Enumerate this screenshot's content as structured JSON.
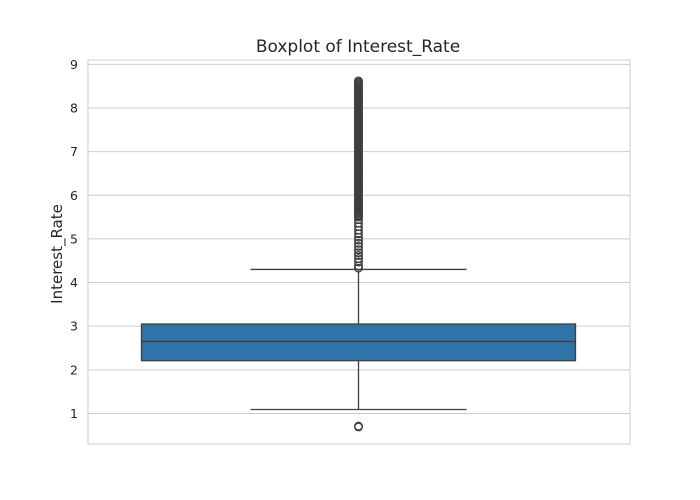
{
  "chart_data": {
    "type": "box",
    "title": "Boxplot of Interest_Rate",
    "xlabel": "",
    "ylabel": "Interest_Rate",
    "ylim": [
      0.3,
      9.1
    ],
    "yticks": [
      1,
      2,
      3,
      4,
      5,
      6,
      7,
      8,
      9
    ],
    "grid": true,
    "box_color": "#2e74a8",
    "boxes": [
      {
        "whisker_low": 1.09,
        "q1": 2.21,
        "median": 2.65,
        "q3": 3.05,
        "whisker_high": 4.3,
        "fliers_low": [
          0.69,
          0.71
        ],
        "fliers_high_sample": [
          4.33,
          4.38,
          4.47,
          4.55,
          4.62,
          4.68,
          4.75,
          4.83,
          4.9,
          4.97,
          5.04,
          5.12,
          5.2,
          5.28,
          5.36,
          5.44
        ]
      }
    ]
  }
}
